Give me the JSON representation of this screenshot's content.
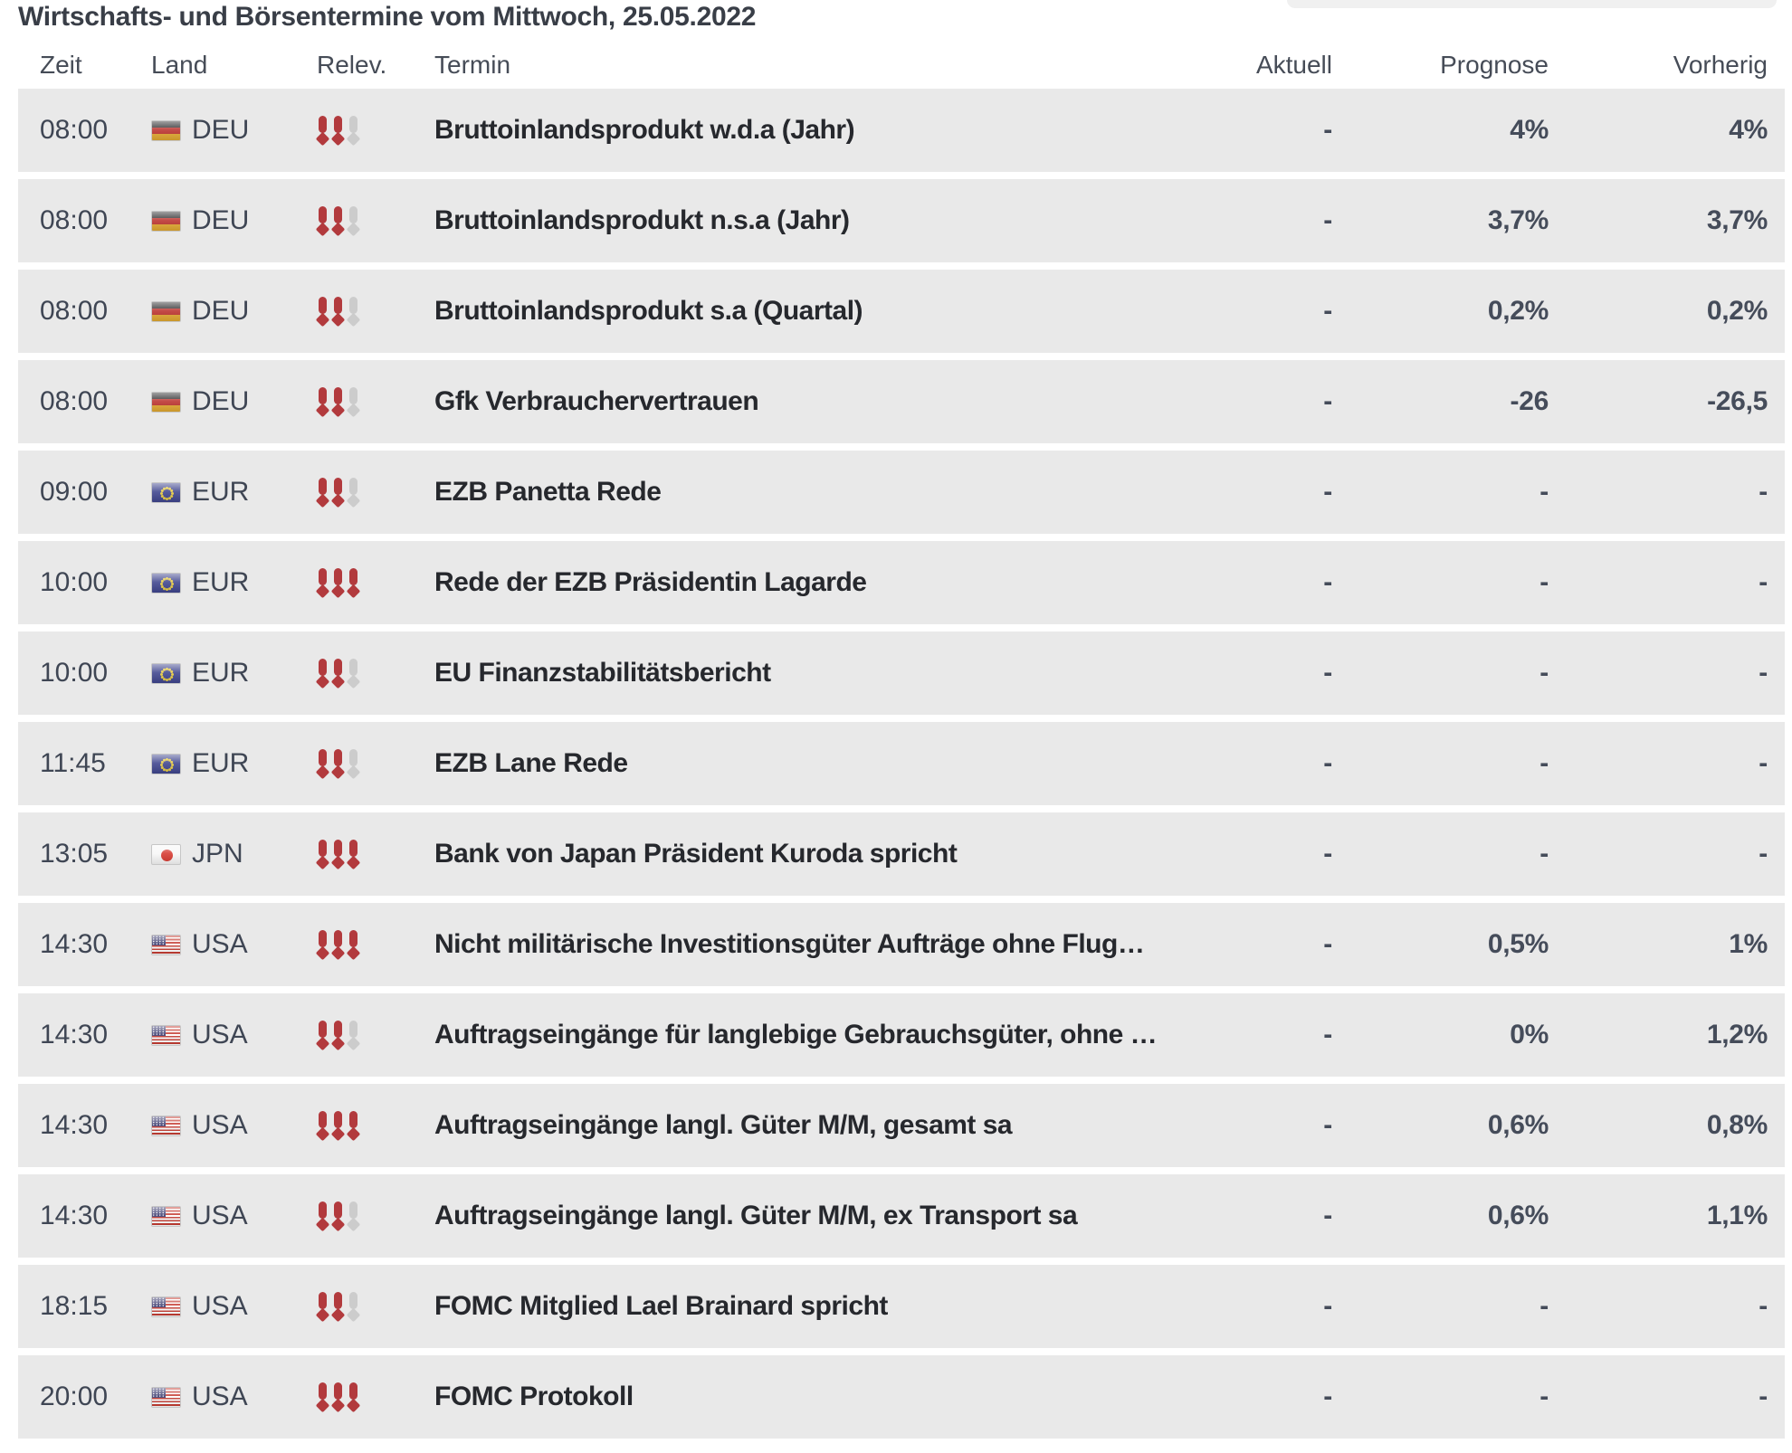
{
  "page": {
    "title": "Wirtschafts- und Börsentermine vom Mittwoch, 25.05.2022"
  },
  "colors": {
    "row_background": "#e9e9e9",
    "relevance_red": "#b23a3d",
    "relevance_gray": "#cccccc",
    "text_dark": "#26282d",
    "text_slate": "#3f4654",
    "top_pill_gray": "#f0f0f0"
  },
  "table": {
    "headers": {
      "zeit": "Zeit",
      "land": "Land",
      "relev": "Relev.",
      "termin": "Termin",
      "aktuell": "Aktuell",
      "prognose": "Prognose",
      "vorherig": "Vorherig"
    },
    "relevance_max": 3,
    "rows": [
      {
        "zeit": "08:00",
        "land": "DEU",
        "flag": "deu",
        "relevance": 2,
        "termin": "Bruttoinlandsprodukt w.d.a (Jahr)",
        "aktuell": "-",
        "prognose": "4%",
        "vorherig": "4%"
      },
      {
        "zeit": "08:00",
        "land": "DEU",
        "flag": "deu",
        "relevance": 2,
        "termin": "Bruttoinlandsprodukt n.s.a (Jahr)",
        "aktuell": "-",
        "prognose": "3,7%",
        "vorherig": "3,7%"
      },
      {
        "zeit": "08:00",
        "land": "DEU",
        "flag": "deu",
        "relevance": 2,
        "termin": "Bruttoinlandsprodukt s.a (Quartal)",
        "aktuell": "-",
        "prognose": "0,2%",
        "vorherig": "0,2%"
      },
      {
        "zeit": "08:00",
        "land": "DEU",
        "flag": "deu",
        "relevance": 2,
        "termin": "Gfk Verbrauchervertrauen",
        "aktuell": "-",
        "prognose": "-26",
        "vorherig": "-26,5"
      },
      {
        "zeit": "09:00",
        "land": "EUR",
        "flag": "eur",
        "relevance": 2,
        "termin": "EZB Panetta Rede",
        "aktuell": "-",
        "prognose": "-",
        "vorherig": "-"
      },
      {
        "zeit": "10:00",
        "land": "EUR",
        "flag": "eur",
        "relevance": 3,
        "termin": "Rede der EZB Präsidentin Lagarde",
        "aktuell": "-",
        "prognose": "-",
        "vorherig": "-"
      },
      {
        "zeit": "10:00",
        "land": "EUR",
        "flag": "eur",
        "relevance": 2,
        "termin": "EU Finanzstabilitätsbericht",
        "aktuell": "-",
        "prognose": "-",
        "vorherig": "-"
      },
      {
        "zeit": "11:45",
        "land": "EUR",
        "flag": "eur",
        "relevance": 2,
        "termin": "EZB Lane Rede",
        "aktuell": "-",
        "prognose": "-",
        "vorherig": "-"
      },
      {
        "zeit": "13:05",
        "land": "JPN",
        "flag": "jpn",
        "relevance": 3,
        "termin": "Bank von Japan Präsident Kuroda spricht",
        "aktuell": "-",
        "prognose": "-",
        "vorherig": "-"
      },
      {
        "zeit": "14:30",
        "land": "USA",
        "flag": "usa",
        "relevance": 3,
        "termin": "Nicht militärische Investitionsgüter Aufträge ohne Flug…",
        "aktuell": "-",
        "prognose": "0,5%",
        "vorherig": "1%"
      },
      {
        "zeit": "14:30",
        "land": "USA",
        "flag": "usa",
        "relevance": 2,
        "termin": "Auftragseingänge für langlebige Gebrauchsgüter, ohne …",
        "aktuell": "-",
        "prognose": "0%",
        "vorherig": "1,2%"
      },
      {
        "zeit": "14:30",
        "land": "USA",
        "flag": "usa",
        "relevance": 3,
        "termin": "Auftragseingänge langl. Güter M/M, gesamt sa",
        "aktuell": "-",
        "prognose": "0,6%",
        "vorherig": "0,8%"
      },
      {
        "zeit": "14:30",
        "land": "USA",
        "flag": "usa",
        "relevance": 2,
        "termin": "Auftragseingänge langl. Güter M/M, ex Transport sa",
        "aktuell": "-",
        "prognose": "0,6%",
        "vorherig": "1,1%"
      },
      {
        "zeit": "18:15",
        "land": "USA",
        "flag": "usa",
        "relevance": 2,
        "termin": "FOMC Mitglied Lael Brainard spricht",
        "aktuell": "-",
        "prognose": "-",
        "vorherig": "-"
      },
      {
        "zeit": "20:00",
        "land": "USA",
        "flag": "usa",
        "relevance": 3,
        "termin": "FOMC Protokoll",
        "aktuell": "-",
        "prognose": "-",
        "vorherig": "-"
      }
    ]
  }
}
